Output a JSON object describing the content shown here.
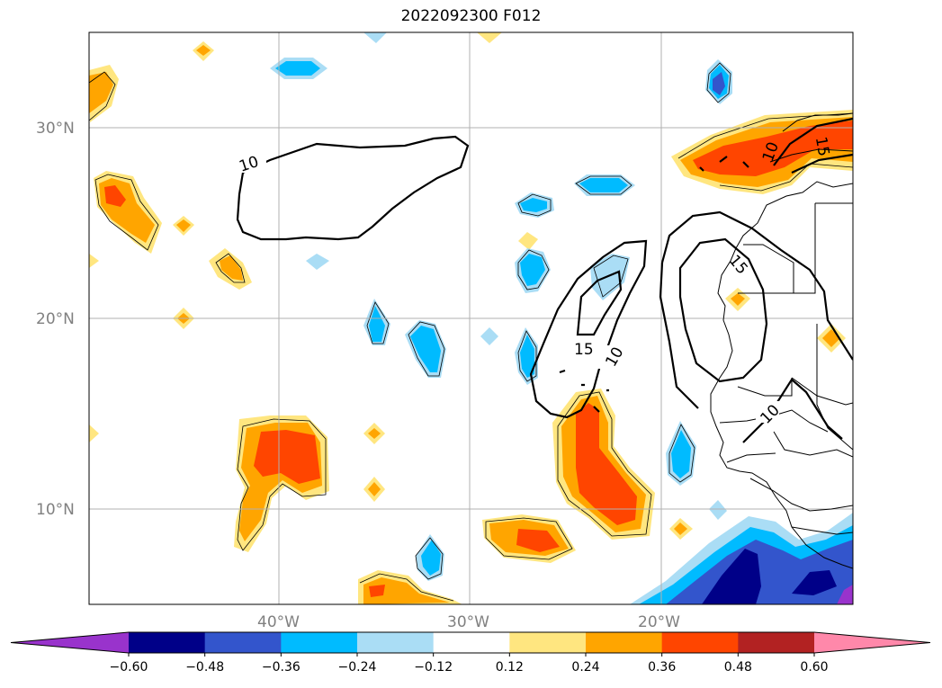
{
  "title": "2022092300 F012",
  "lat_labels": [
    "30°N",
    "20°N",
    "10°N"
  ],
  "lon_labels": [
    "40°W",
    "30°W",
    "20°W"
  ],
  "contour_labels": [
    "10",
    "15",
    "10",
    "10",
    "10",
    "15",
    "15"
  ],
  "colorbar": {
    "ticks": [
      "−0.60",
      "−0.48",
      "−0.36",
      "−0.24",
      "−0.12",
      "0.12",
      "0.24",
      "0.36",
      "0.48",
      "0.60"
    ],
    "colors": [
      "#9933cc",
      "#000088",
      "#3355cc",
      "#00bbff",
      "#aaddf5",
      "#ffffff",
      "#ffe680",
      "#ffa500",
      "#ff4500",
      "#b22222",
      "#ff88aa",
      "#ff88aa"
    ]
  }
}
